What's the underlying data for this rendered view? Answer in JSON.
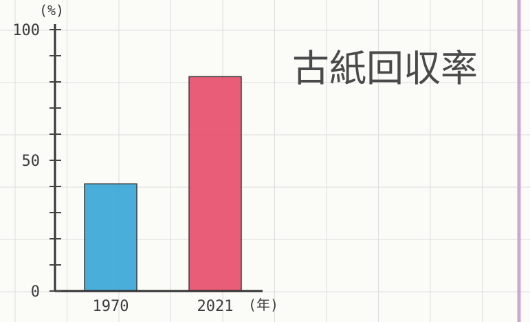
{
  "chart_data": {
    "type": "bar",
    "title": "古紙回収率",
    "ylabel": "(%)",
    "xlabel": "(年)",
    "categories": [
      "1970",
      "2021"
    ],
    "values": [
      41,
      82
    ],
    "ylim": [
      0,
      100
    ],
    "yticks": [
      "0",
      "50",
      "100"
    ],
    "colors": [
      "#3aa8d8",
      "#e8506e"
    ],
    "grid": true
  }
}
